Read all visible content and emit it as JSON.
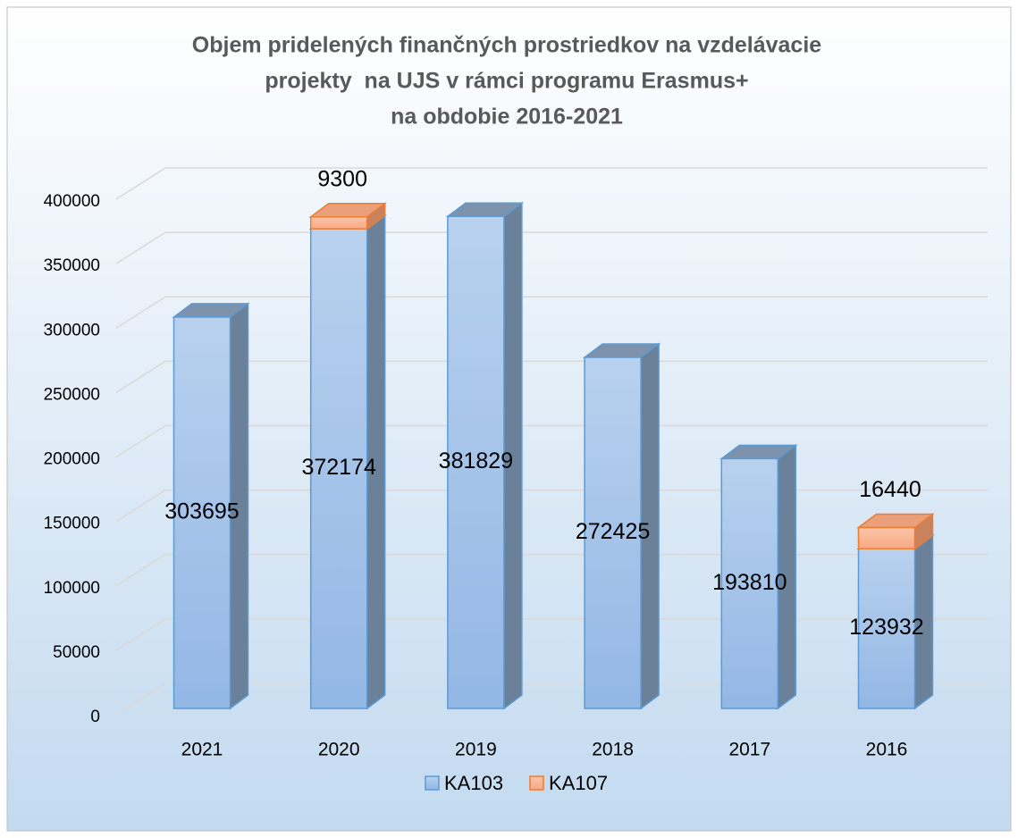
{
  "chart_data": {
    "type": "bar3d_stacked",
    "title": [
      "Objem pridelených finančných prostriedkov na vzdelávacie",
      "projekty  na UJS v rámci programu Erasmus+",
      "na obdobie 2016-2021"
    ],
    "categories": [
      "2021",
      "2020",
      "2019",
      "2018",
      "2017",
      "2016"
    ],
    "series": [
      {
        "name": "KA103",
        "color": "#a4c2ea",
        "values": [
          303695,
          372174,
          381829,
          272425,
          193810,
          123932
        ]
      },
      {
        "name": "KA107",
        "color": "#f9b899",
        "values": [
          null,
          9300,
          null,
          null,
          null,
          16440
        ]
      }
    ],
    "ylim": [
      0,
      400000
    ],
    "yticks": [
      0,
      50000,
      100000,
      150000,
      200000,
      250000,
      300000,
      350000,
      400000
    ],
    "grid": true,
    "legend": "bottom"
  }
}
